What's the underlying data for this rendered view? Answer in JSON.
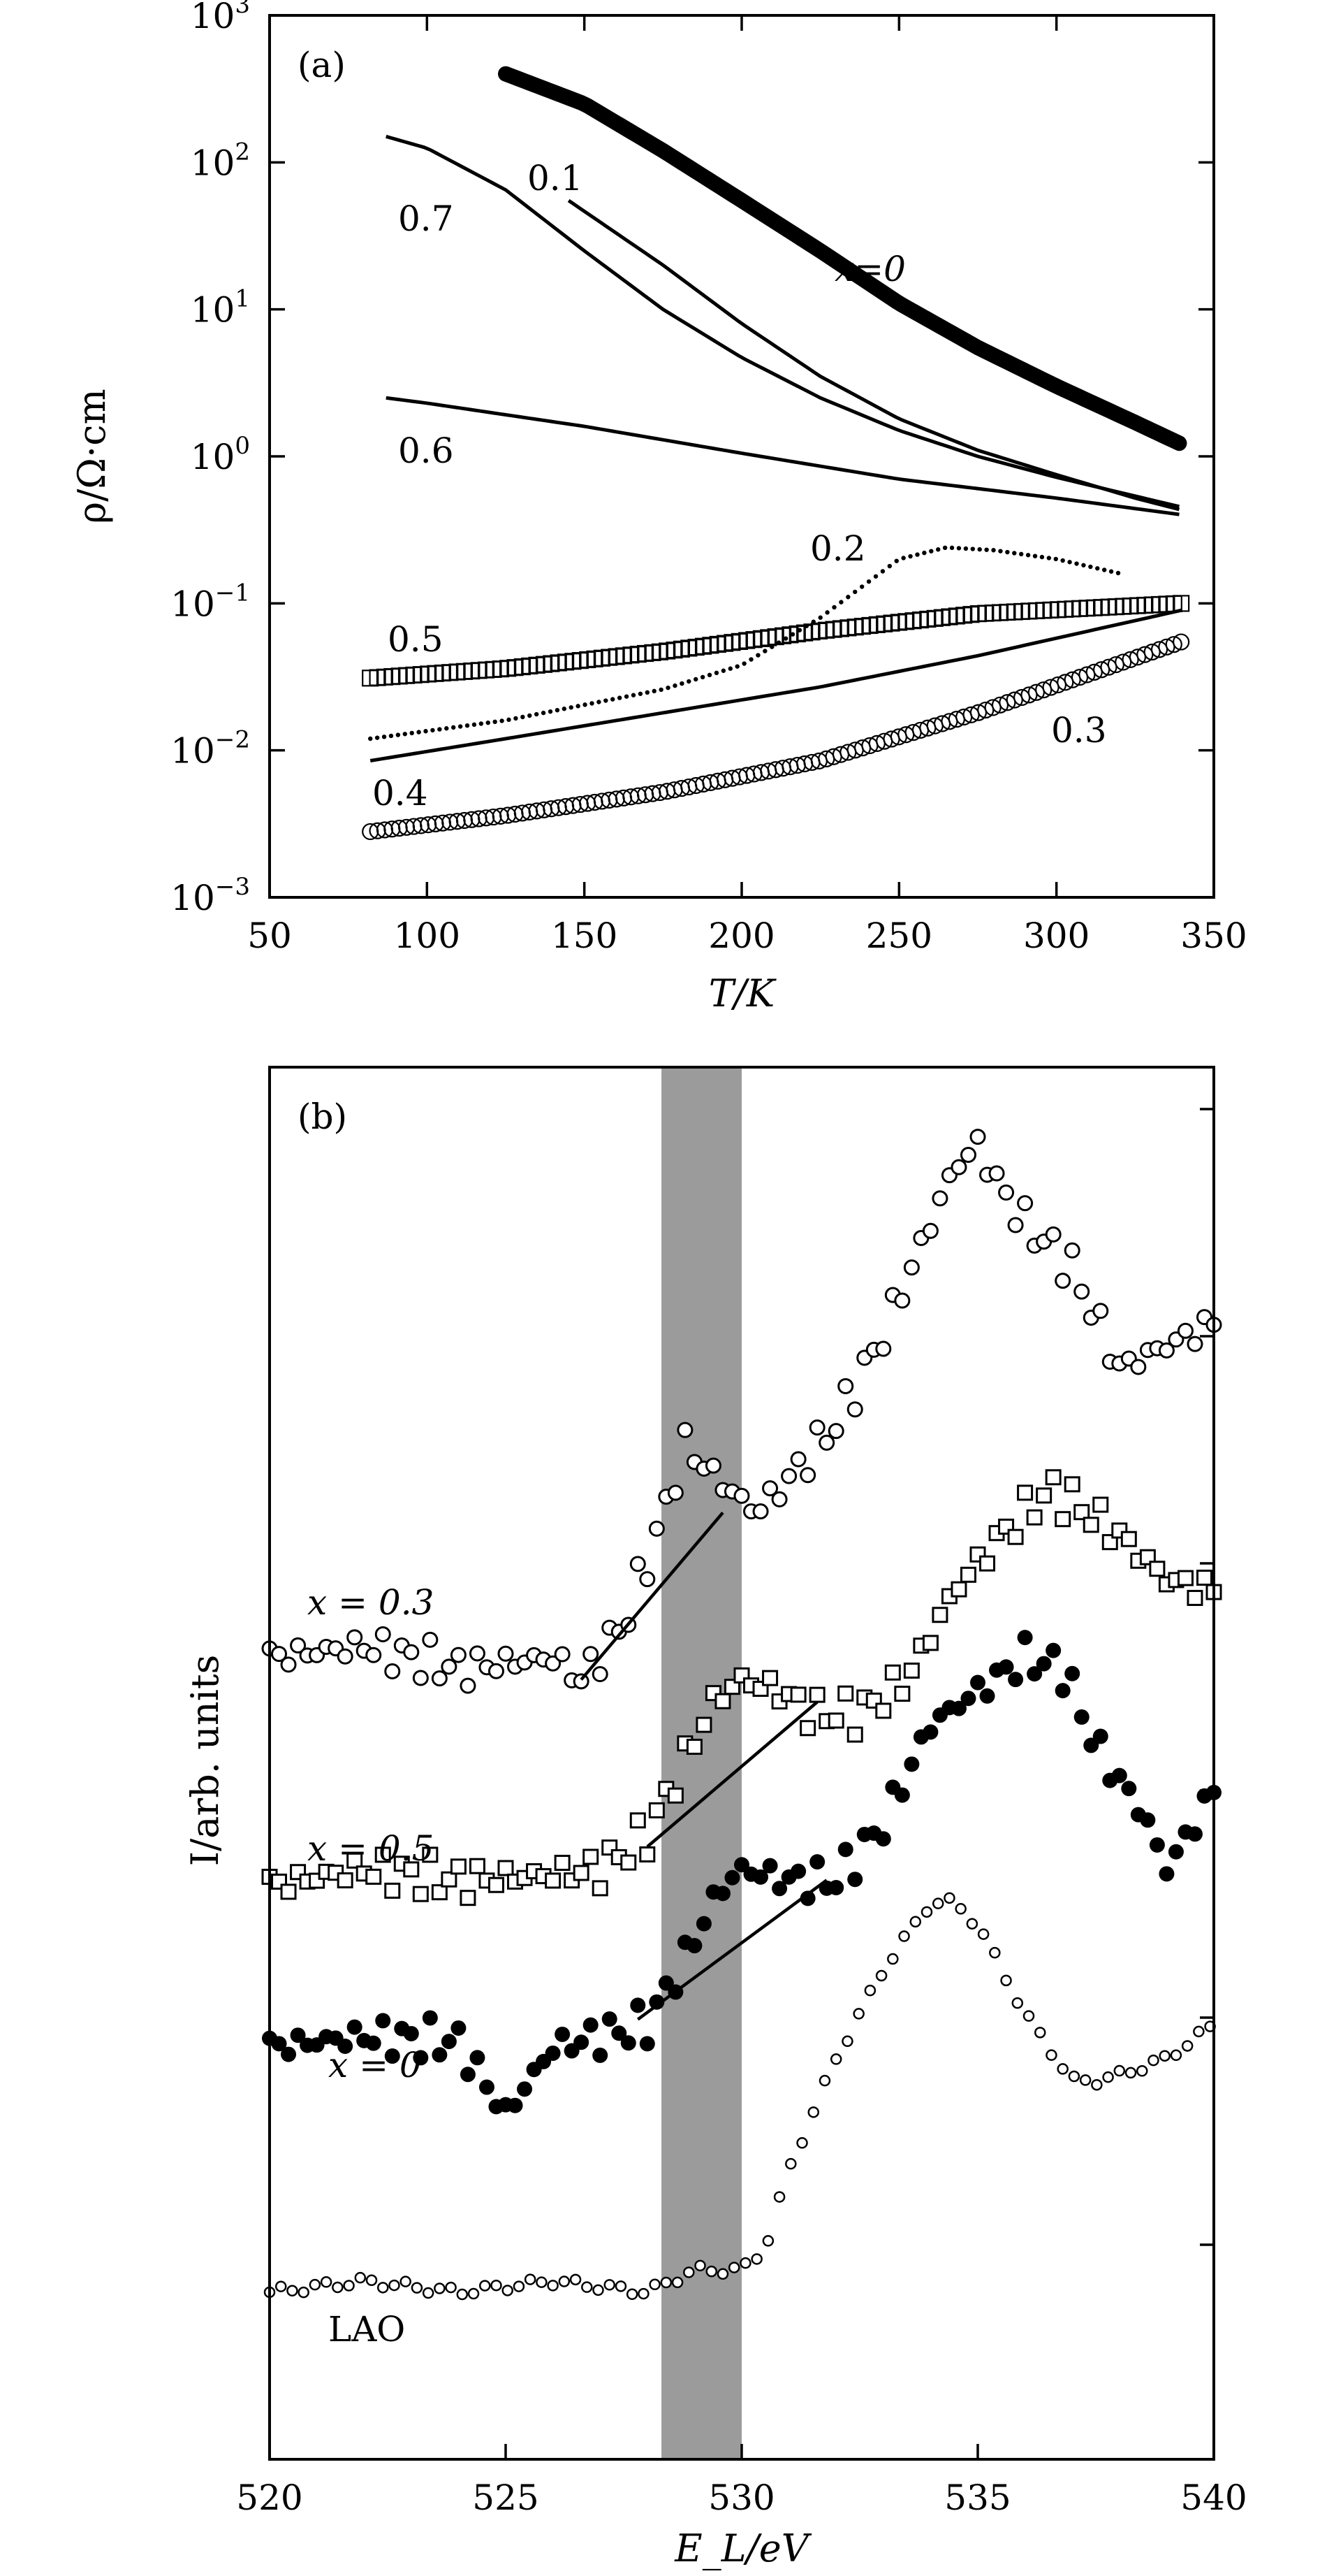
{
  "chart_data": [
    {
      "type": "scatter",
      "panel": "(a)",
      "xlabel": "T/K",
      "ylabel": "ρ/Ω·cm",
      "xlim": [
        50,
        350
      ],
      "ylim_log10": [
        -3,
        3
      ],
      "yscale": "log",
      "x_ticks": [
        50,
        100,
        150,
        200,
        250,
        300,
        350
      ],
      "y_ticks": [
        {
          "base": "10",
          "exp": "−3",
          "value": -3
        },
        {
          "base": "10",
          "exp": "−2",
          "value": -2
        },
        {
          "base": "10",
          "exp": "−1",
          "value": -1
        },
        {
          "base": "10",
          "exp": "0",
          "value": 0
        },
        {
          "base": "10",
          "exp": "1",
          "value": 1
        },
        {
          "base": "10",
          "exp": "2",
          "value": 2
        },
        {
          "base": "10",
          "exp": "3",
          "value": 3
        }
      ],
      "series": [
        {
          "name": "x=0",
          "label": "x=0",
          "marker": "thick",
          "x": [
            125,
            150,
            175,
            200,
            225,
            250,
            275,
            300,
            325,
            340
          ],
          "y": [
            400,
            250,
            120,
            55,
            25,
            11,
            5.5,
            3,
            1.7,
            1.2
          ]
        },
        {
          "name": "0.1",
          "label": "0.1",
          "marker": "line",
          "x": [
            145,
            175,
            200,
            225,
            250,
            275,
            300,
            325,
            340
          ],
          "y": [
            55,
            20,
            8,
            3.5,
            1.8,
            1.1,
            0.75,
            0.52,
            0.43
          ]
        },
        {
          "name": "0.7",
          "label": "0.7",
          "marker": "line",
          "x": [
            87,
            100,
            125,
            150,
            175,
            200,
            225,
            250,
            275,
            300,
            340
          ],
          "y": [
            150,
            125,
            65,
            25,
            10,
            4.7,
            2.5,
            1.5,
            1.0,
            0.72,
            0.45
          ]
        },
        {
          "name": "0.6",
          "label": "0.6",
          "marker": "line",
          "x": [
            87,
            100,
            150,
            200,
            250,
            300,
            340
          ],
          "y": [
            2.5,
            2.3,
            1.6,
            1.05,
            0.7,
            0.52,
            0.4
          ]
        },
        {
          "name": "0.2",
          "label": "0.2",
          "marker": "dots",
          "x": [
            82,
            125,
            175,
            200,
            225,
            250,
            265,
            280,
            300,
            320
          ],
          "y": [
            0.012,
            0.016,
            0.026,
            0.038,
            0.08,
            0.2,
            0.24,
            0.23,
            0.2,
            0.16
          ]
        },
        {
          "name": "0.5",
          "label": "0.5",
          "marker": "square",
          "x": [
            82,
            125,
            175,
            225,
            275,
            340
          ],
          "y": [
            0.031,
            0.036,
            0.047,
            0.065,
            0.085,
            0.1
          ]
        },
        {
          "name": "0.4",
          "label": "0.4",
          "marker": "line",
          "x": [
            82,
            125,
            175,
            225,
            275,
            340
          ],
          "y": [
            0.0085,
            0.012,
            0.018,
            0.027,
            0.044,
            0.09
          ]
        },
        {
          "name": "0.3",
          "label": "0.3",
          "marker": "circle",
          "x": [
            82,
            125,
            175,
            225,
            275,
            340
          ],
          "y": [
            0.0028,
            0.0036,
            0.0052,
            0.0085,
            0.018,
            0.055
          ]
        }
      ]
    },
    {
      "type": "scatter",
      "panel": "(b)",
      "xlabel": "E_L/eV",
      "ylabel": "I/arb. units",
      "xlim": [
        520,
        540
      ],
      "x_ticks": [
        520,
        525,
        530,
        535,
        540
      ],
      "shaded_band": {
        "x0": 528.3,
        "x1": 530.0,
        "color": "#9b9b9b"
      },
      "series": [
        {
          "name": "x = 0.3",
          "label": "x = 0.3",
          "marker": "open-circle",
          "x": [
            520,
            522,
            524,
            526,
            526.6,
            527.5,
            528.2,
            528.8,
            529.5,
            530.3,
            531,
            532,
            533,
            534,
            534.5,
            535,
            535.5,
            536,
            537,
            538,
            539,
            540
          ],
          "y": [
            0.47,
            0.48,
            0.46,
            0.47,
            0.45,
            0.5,
            0.58,
            0.66,
            0.63,
            0.6,
            0.63,
            0.68,
            0.76,
            0.86,
            0.91,
            0.93,
            0.89,
            0.86,
            0.82,
            0.73,
            0.75,
            0.77
          ]
        },
        {
          "name": "x = 0.5",
          "label": "x = 0.5",
          "marker": "open-square",
          "x": [
            520,
            522,
            524,
            526,
            527,
            528,
            528.7,
            529.4,
            530,
            530.8,
            531.5,
            532.5,
            533.5,
            534.5,
            535.5,
            536.5,
            537,
            538,
            539,
            540
          ],
          "y": [
            0.265,
            0.28,
            0.27,
            0.275,
            0.28,
            0.31,
            0.37,
            0.43,
            0.45,
            0.44,
            0.42,
            0.42,
            0.45,
            0.53,
            0.58,
            0.62,
            0.61,
            0.58,
            0.54,
            0.53
          ]
        },
        {
          "name": "x = 0",
          "label": "x = 0",
          "marker": "filled-circle",
          "x": [
            520,
            522,
            524,
            525,
            526,
            527,
            528,
            528.8,
            529.5,
            530,
            531,
            532,
            533,
            534,
            535,
            536,
            536.8,
            537.5,
            538.5,
            539,
            540
          ],
          "y": [
            0.12,
            0.13,
            0.125,
            0.06,
            0.12,
            0.13,
            0.14,
            0.2,
            0.26,
            0.28,
            0.27,
            0.27,
            0.32,
            0.41,
            0.44,
            0.47,
            0.46,
            0.39,
            0.33,
            0.28,
            0.35
          ]
        },
        {
          "name": "LAO",
          "label": "LAO",
          "marker": "small-open-circle",
          "x": [
            520,
            522,
            524,
            526,
            528,
            529,
            530,
            530.5,
            531,
            532,
            533,
            534,
            534.5,
            535,
            536,
            537,
            537.5,
            538,
            539,
            540
          ],
          "y": [
            -0.1,
            -0.09,
            -0.1,
            -0.09,
            -0.1,
            -0.08,
            -0.08,
            -0.06,
            0.01,
            0.11,
            0.19,
            0.25,
            0.25,
            0.23,
            0.15,
            0.09,
            0.09,
            0.095,
            0.11,
            0.14
          ]
        }
      ],
      "guide_lines": [
        {
          "from": [
            526.6,
            0.45
          ],
          "to": [
            529.6,
            0.6
          ]
        },
        {
          "from": [
            528.0,
            0.3
          ],
          "to": [
            531.6,
            0.43
          ]
        },
        {
          "from": [
            527.8,
            0.145
          ],
          "to": [
            531.8,
            0.27
          ]
        }
      ]
    }
  ]
}
